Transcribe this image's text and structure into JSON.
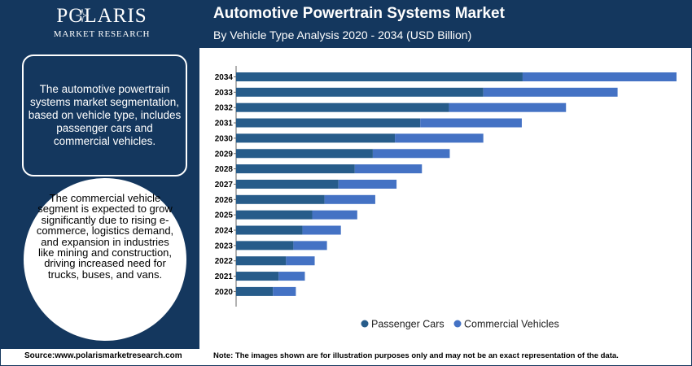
{
  "brand": {
    "name": "POLARIS",
    "tagline": "MARKET RESEARCH"
  },
  "header": {
    "title": "Automotive Powertrain Systems Market",
    "subtitle": "By Vehicle Type Analysis 2020 - 2034 (USD Billion)"
  },
  "left_panel": {
    "box_text": "The automotive powertrain systems market segmentation, based on vehicle type, includes passenger cars and commercial vehicles.",
    "circle_text": "The commercial vehicle segment is expected to grow significantly due to rising e-commerce, logistics demand, and expansion in industries like mining and construction, driving increased need for trucks, buses, and vans."
  },
  "footer": {
    "source": "Source:www.polarismarketresearch.com",
    "note": "Note: The images shown are for illustration purposes only and may not be an exact representation of the data."
  },
  "colors": {
    "navy": "#14375e",
    "passenger_cars": "#275c8a",
    "commercial_vehicles": "#4472c4"
  },
  "chart_data": {
    "type": "bar",
    "orientation": "horizontal",
    "stacked": true,
    "categories": [
      "2034",
      "2033",
      "2032",
      "2031",
      "2030",
      "2029",
      "2028",
      "2027",
      "2026",
      "2025",
      "2024",
      "2023",
      "2022",
      "2021",
      "2020"
    ],
    "series": [
      {
        "name": "Passenger Cars",
        "color": "#275c8a",
        "values": [
          350,
          302,
          260,
          225,
          194,
          167,
          145,
          125,
          108,
          93,
          81,
          70,
          61,
          52,
          45
        ]
      },
      {
        "name": "Commercial Vehicles",
        "color": "#4472c4",
        "values": [
          188,
          164,
          143,
          124,
          108,
          94,
          82,
          71,
          62,
          55,
          47,
          41,
          35,
          32,
          28
        ]
      }
    ],
    "xlim": [
      0,
      540
    ],
    "grid": false,
    "legend": "bottom-center"
  }
}
